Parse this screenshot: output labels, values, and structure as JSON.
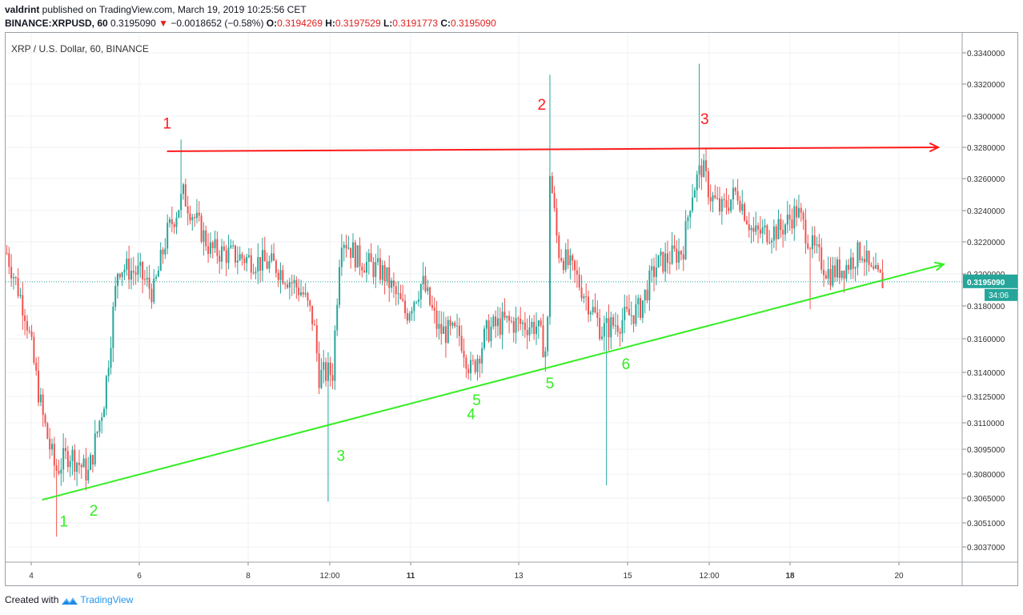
{
  "header": {
    "author": "valdrint",
    "published_text": " published on TradingView.com, March 19, 2019 10:25:56 CET",
    "symbol": "BINANCE:XRPUSD, 60",
    "last": "0.3195090",
    "change_arrow": "▼",
    "change": "−0.0018652 (−0.58%)",
    "o_label": "O:",
    "o_value": "0.3194269",
    "h_label": "H:",
    "h_value": "0.3197529",
    "l_label": "L:",
    "l_value": "0.3191773",
    "c_label": "C:",
    "c_value": "0.3195090"
  },
  "footer": {
    "created_with": "Created with",
    "brand": "TradingView"
  },
  "colors": {
    "up": "#26a69a",
    "down": "#ef5350",
    "resistance": "#ff1a1a",
    "support": "#33ee22",
    "price_tag": "#26a69a",
    "grid": "#eef1f4"
  },
  "chart_data": {
    "type": "candlestick",
    "title": "XRP / U.S. Dollar, 60, BINANCE",
    "x_tick_labels": [
      "4",
      "6",
      "8",
      "12:00",
      "11",
      "13",
      "15",
      "12:00",
      "18",
      "20"
    ],
    "x_bold_ticks": [
      "11",
      "18"
    ],
    "y_tick_labels": [
      "0.3340000",
      "0.3320000",
      "0.3300000",
      "0.3280000",
      "0.3260000",
      "0.3240000",
      "0.3220000",
      "0.3200000",
      "0.3180000",
      "0.3160000",
      "0.3140000",
      "0.3125000",
      "0.3110000",
      "0.3095000",
      "0.3080000",
      "0.3065000",
      "0.3051000",
      "0.3037000"
    ],
    "ylim": [
      0.3025,
      0.335
    ],
    "last_price": "0.3195090",
    "countdown": "34:06",
    "resistance_line": {
      "from": {
        "day": 6.5,
        "price": 0.32775
      },
      "to": {
        "day": 20.7,
        "price": 0.328
      }
    },
    "support_line": {
      "from": {
        "day": 4.2,
        "price": 0.3064
      },
      "to": {
        "day": 20.8,
        "price": 0.3206
      }
    },
    "resistance_labels": [
      {
        "text": "1",
        "day": 6.5,
        "price": 0.3292
      },
      {
        "text": "2",
        "day": 13.4,
        "price": 0.3304
      },
      {
        "text": "3",
        "day": 16.4,
        "price": 0.3295
      }
    ],
    "support_labels": [
      {
        "text": "1",
        "day": 4.6,
        "price": 0.3049
      },
      {
        "text": "2",
        "day": 5.15,
        "price": 0.3055
      },
      {
        "text": "3",
        "day": 9.7,
        "price": 0.3088
      },
      {
        "text": "4",
        "day": 12.1,
        "price": 0.3112
      },
      {
        "text": "5",
        "day": 12.2,
        "price": 0.312
      },
      {
        "text": "5",
        "day": 13.55,
        "price": 0.313
      },
      {
        "text": "6",
        "day": 14.95,
        "price": 0.3142
      }
    ],
    "price_path": [
      [
        3.55,
        0.3213
      ],
      [
        3.9,
        0.3175
      ],
      [
        4.2,
        0.3115
      ],
      [
        4.45,
        0.3082
      ],
      [
        4.7,
        0.3093
      ],
      [
        5.05,
        0.308
      ],
      [
        5.35,
        0.3125
      ],
      [
        5.6,
        0.3205
      ],
      [
        6.0,
        0.32
      ],
      [
        6.25,
        0.3188
      ],
      [
        6.5,
        0.3225
      ],
      [
        6.8,
        0.325
      ],
      [
        7.3,
        0.3215
      ],
      [
        7.9,
        0.321
      ],
      [
        8.5,
        0.3205
      ],
      [
        9.0,
        0.3188
      ],
      [
        9.2,
        0.317
      ],
      [
        9.3,
        0.3138
      ],
      [
        9.55,
        0.314
      ],
      [
        9.7,
        0.3225
      ],
      [
        10.0,
        0.321
      ],
      [
        10.5,
        0.32
      ],
      [
        10.9,
        0.3175
      ],
      [
        11.2,
        0.3195
      ],
      [
        11.5,
        0.3165
      ],
      [
        11.9,
        0.3162
      ],
      [
        12.1,
        0.314
      ],
      [
        12.4,
        0.3165
      ],
      [
        12.7,
        0.317
      ],
      [
        13.3,
        0.3168
      ],
      [
        13.5,
        0.315
      ],
      [
        13.55,
        0.3265
      ],
      [
        13.7,
        0.3215
      ],
      [
        14.0,
        0.32
      ],
      [
        14.3,
        0.318
      ],
      [
        14.5,
        0.3165
      ],
      [
        14.8,
        0.317
      ],
      [
        15.2,
        0.3178
      ],
      [
        15.5,
        0.3205
      ],
      [
        16.0,
        0.3215
      ],
      [
        16.15,
        0.325
      ],
      [
        16.35,
        0.3268
      ],
      [
        16.5,
        0.325
      ],
      [
        16.7,
        0.324
      ],
      [
        17.0,
        0.3252
      ],
      [
        17.3,
        0.3225
      ],
      [
        17.8,
        0.3228
      ],
      [
        18.1,
        0.324
      ],
      [
        18.4,
        0.3215
      ],
      [
        18.7,
        0.32
      ],
      [
        19.0,
        0.3205
      ],
      [
        19.3,
        0.3215
      ],
      [
        19.45,
        0.32
      ],
      [
        19.7,
        0.3195
      ]
    ],
    "notable_wicks": [
      {
        "day": 4.45,
        "low": 0.3043
      },
      {
        "day": 9.47,
        "low": 0.3063
      },
      {
        "day": 13.55,
        "high": 0.3326
      },
      {
        "day": 14.6,
        "low": 0.3073
      },
      {
        "day": 16.3,
        "high": 0.3333
      },
      {
        "day": 6.75,
        "high": 0.3285
      },
      {
        "day": 18.35,
        "low": 0.3178
      }
    ]
  }
}
